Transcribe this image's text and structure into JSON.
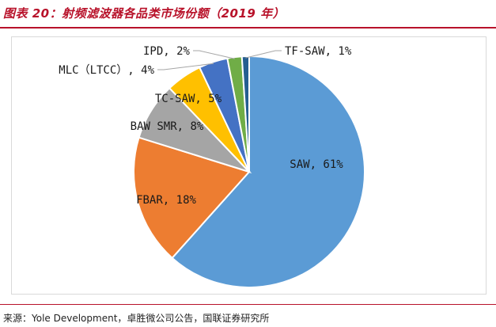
{
  "title": "图表 20：射频滤波器各品类市场份额（2019 年）",
  "source": "来源：Yole Development，卓胜微公司公告，国联证券研究所",
  "chart_data": {
    "type": "pie",
    "title": "",
    "slices": [
      {
        "name": "SAW",
        "value": 61,
        "label": "SAW, 61%",
        "color": "#5b9bd5"
      },
      {
        "name": "FBAR",
        "value": 18,
        "label": "FBAR, 18%",
        "color": "#ed7d31"
      },
      {
        "name": "BAW SMR",
        "value": 8,
        "label": "BAW SMR, 8%",
        "color": "#a5a5a5"
      },
      {
        "name": "TC-SAW",
        "value": 5,
        "label": "TC-SAW, 5%",
        "color": "#ffc000"
      },
      {
        "name": "MLC（LTCC）",
        "value": 4,
        "label": "MLC（LTCC）, 4%",
        "color": "#4472c4"
      },
      {
        "name": "IPD",
        "value": 2,
        "label": "IPD, 2%",
        "color": "#70ad47"
      },
      {
        "name": "TF-SAW",
        "value": 1,
        "label": "TF-SAW, 1%",
        "color": "#255e91"
      }
    ]
  }
}
